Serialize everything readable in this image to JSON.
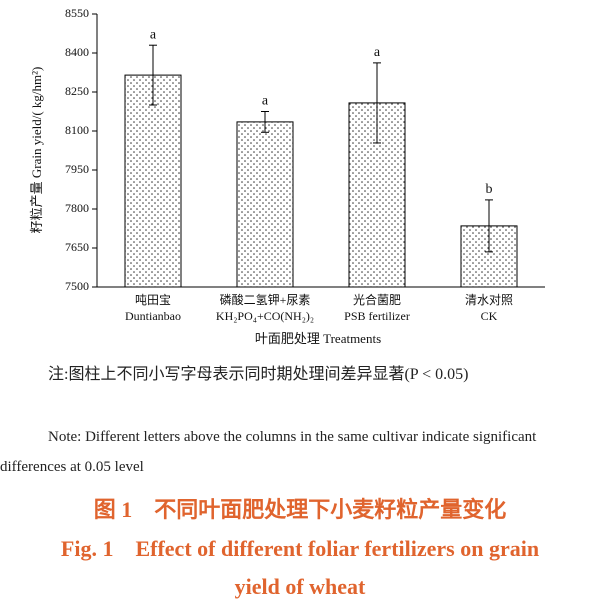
{
  "chart_data": {
    "type": "bar",
    "categories": [
      [
        "吨田宝",
        "Duntianbao"
      ],
      [
        "磷酸二氢钾+尿素",
        "KH₂PO₄+CO(NH₂)₂"
      ],
      [
        "光合菌肥",
        "PSB fertilizer"
      ],
      [
        "清水对照",
        "CK"
      ]
    ],
    "values": [
      8315,
      8135,
      8208,
      7735
    ],
    "errors": [
      115,
      40,
      154,
      100
    ],
    "annotations": [
      "a",
      "a",
      "a",
      "b"
    ],
    "ylabel": "籽粒产量 Grain yield/( kg/hm²)",
    "xlabel": "叶面肥处理 Treatments",
    "ylim": [
      7500,
      8550
    ],
    "yticks": [
      7500,
      7650,
      7800,
      7950,
      8100,
      8250,
      8400,
      8550
    ],
    "color": "#ffffff"
  },
  "notes": {
    "cn": "注:图柱上不同小写字母表示同时期处理间差异显著(P < 0.05)",
    "en": "Note: Different letters above the columns in the same cultivar indicate significant differences at 0.05 level"
  },
  "caption": {
    "cn": "图 1　不同叶面肥处理下小麦籽粒产量变化",
    "en": "Fig. 1　Effect of different foliar fertilizers on grain yield of wheat"
  }
}
